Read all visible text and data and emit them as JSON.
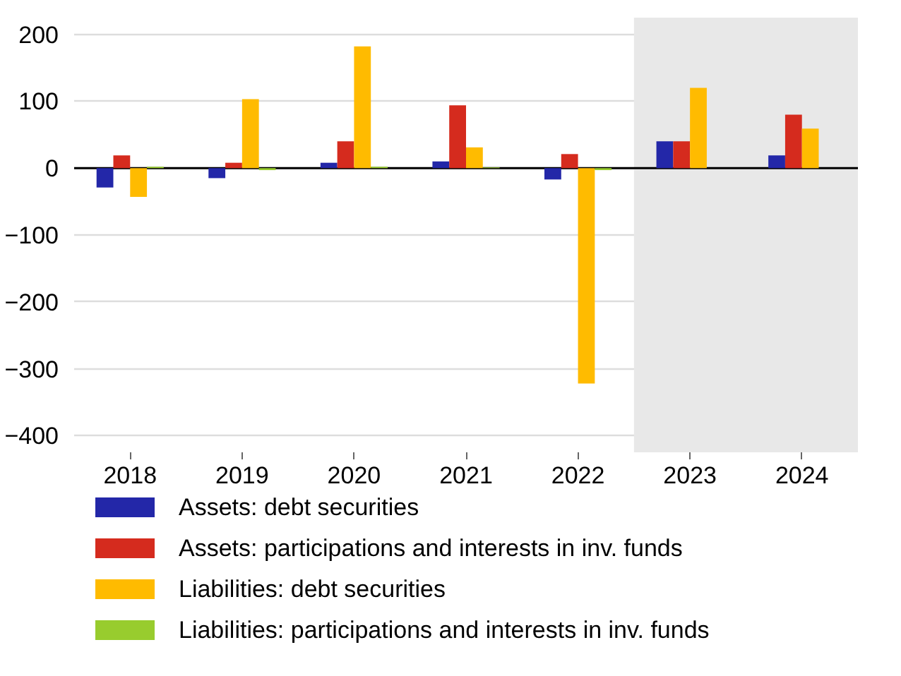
{
  "chart_data": {
    "type": "bar",
    "categories": [
      "2018",
      "2019",
      "2020",
      "2021",
      "2022",
      "2023",
      "2024"
    ],
    "series": [
      {
        "name": "Assets: debt securities",
        "color": "#2327a8",
        "values": [
          -29,
          -15,
          8,
          10,
          -17,
          40,
          19
        ]
      },
      {
        "name": "Assets: participations and interests in inv. funds",
        "color": "#d52b1e",
        "values": [
          19,
          8,
          40,
          94,
          21,
          40,
          80
        ]
      },
      {
        "name": "Liabilities: debt securities",
        "color": "#ffbb00",
        "values": [
          -43,
          103,
          182,
          31,
          -322,
          120,
          59
        ]
      },
      {
        "name": "Liabilities: participations and interests in inv. funds",
        "color": "#98cc2e",
        "values": [
          2,
          -3,
          2,
          1,
          -3,
          null,
          null
        ]
      }
    ],
    "ylim": [
      -425,
      225
    ],
    "yticks": [
      -400,
      -300,
      -200,
      -100,
      0,
      100,
      200
    ],
    "ref_lines": [
      {
        "axis": "y",
        "value": 0,
        "color": "#000000"
      }
    ],
    "bands": [
      {
        "axis": "x",
        "from": "2023",
        "to": "2024",
        "color": "#e8e8e8"
      }
    ],
    "grid": "y",
    "legend": "bottom"
  }
}
